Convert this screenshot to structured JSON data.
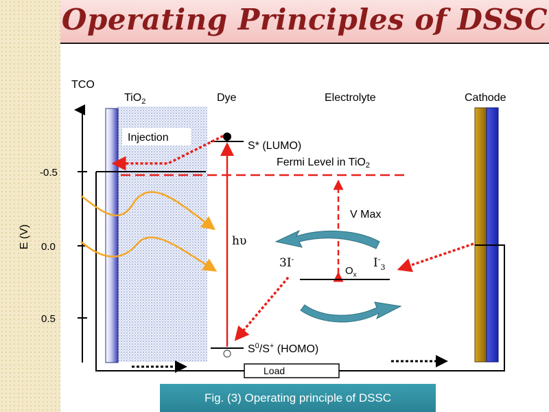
{
  "title": "Operating Principles of DSSC",
  "caption": "Fig. (3) Operating principle of DSSC",
  "labels": {
    "tco": "TCO",
    "tio2_main": "TiO",
    "tio2_sub": "2",
    "dye": "Dye",
    "electrolyte": "Electrolyte",
    "cathode": "Cathode",
    "injection": "Injection",
    "lumo": "S* (LUMO)",
    "fermi_main": "Fermi Level in TiO",
    "fermi_sub": "2",
    "vmax": "V Max",
    "hv": "hυ",
    "three_i_main": "3I",
    "three_i_sup": "-",
    "i3_main": "I",
    "i3_sup": "-",
    "i3_sub": "3",
    "ox_main": "O",
    "ox_sub": "x",
    "homo_s": "S",
    "homo_sup": "0",
    "homo_rest": "/S",
    "homo_sup2": "+",
    "homo_tail": " (HOMO)",
    "load": "Load",
    "axis_label": "E (V)",
    "tick_minus05": "-0.5",
    "tick_00": "0.0",
    "tick_05": "0.5"
  },
  "colors": {
    "title": "#8b1c1c",
    "red": "#e8201a",
    "orange": "#f5a623",
    "teal_arrow": "#3c8ea3",
    "cathode_gold": "#b8860b",
    "cathode_blue": "#2233cc",
    "caption_bg": "#3192a4"
  }
}
